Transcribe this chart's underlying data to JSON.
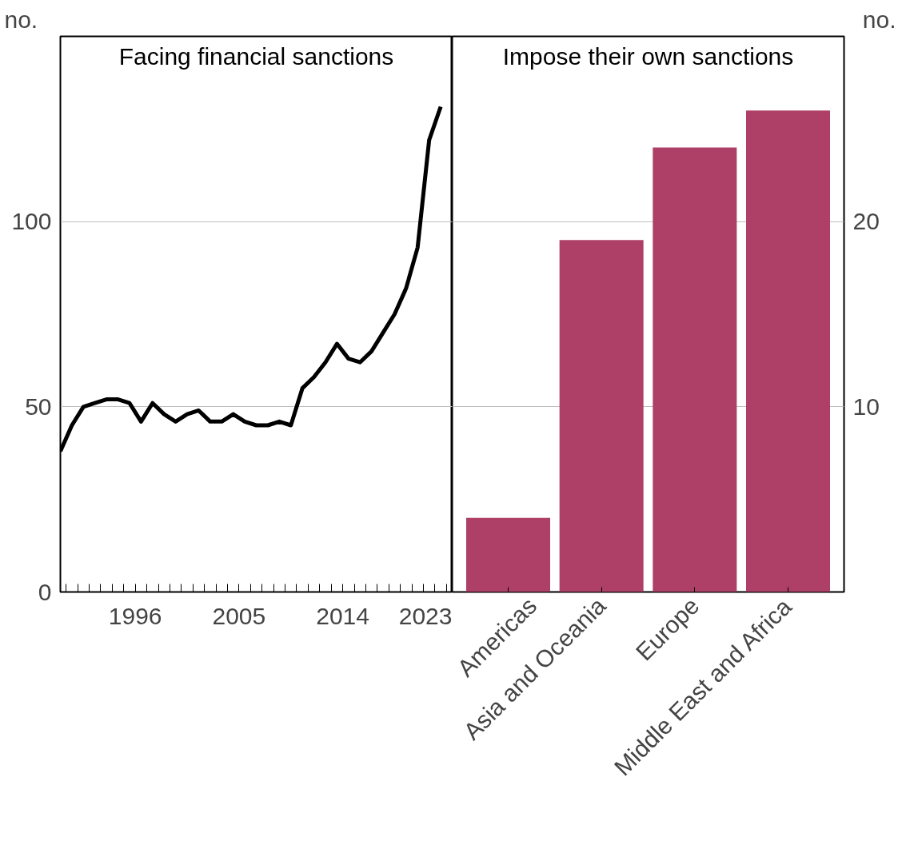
{
  "chart_data": [
    {
      "type": "line",
      "title": "Facing financial sanctions",
      "ylabel": "no.",
      "color": "#000000",
      "x": [
        1989.5,
        1990.5,
        1991.5,
        1992.5,
        1993.5,
        1994.5,
        1995.5,
        1996.5,
        1997.5,
        1998.5,
        1999.5,
        2000.5,
        2001.5,
        2002.5,
        2003.5,
        2004.5,
        2005.5,
        2006.5,
        2007.5,
        2008.5,
        2009.5,
        2010.5,
        2011.5,
        2012.5,
        2013.5,
        2014.5,
        2015.5,
        2016.5,
        2017.5,
        2018.5,
        2019.5,
        2020.5,
        2021.5,
        2022.5
      ],
      "values": [
        38,
        45,
        50,
        51,
        52,
        52,
        51,
        46,
        51,
        48,
        46,
        48,
        49,
        46,
        46,
        48,
        46,
        45,
        45,
        46,
        45,
        55,
        58,
        62,
        67,
        63,
        62,
        65,
        70,
        75,
        82,
        93,
        122,
        131
      ],
      "xlim": [
        1989.5,
        2023.5
      ],
      "xticks": [
        {
          "value": 1990,
          "label": null
        },
        {
          "value": 1991,
          "label": null
        },
        {
          "value": 1992,
          "label": null
        },
        {
          "value": 1993,
          "label": null
        },
        {
          "value": 1994,
          "label": null
        },
        {
          "value": 1995,
          "label": null
        },
        1996,
        {
          "value": 1997,
          "label": null
        },
        {
          "value": 1998,
          "label": null
        },
        {
          "value": 1999,
          "label": null
        },
        {
          "value": 2000,
          "label": null
        },
        {
          "value": 2001,
          "label": null
        },
        {
          "value": 2002,
          "label": null
        },
        {
          "value": 2003,
          "label": null
        },
        {
          "value": 2004,
          "label": null
        },
        2005,
        {
          "value": 2006,
          "label": null
        },
        {
          "value": 2007,
          "label": null
        },
        {
          "value": 2008,
          "label": null
        },
        {
          "value": 2009,
          "label": null
        },
        {
          "value": 2010,
          "label": null
        },
        {
          "value": 2011,
          "label": null
        },
        {
          "value": 2012,
          "label": null
        },
        {
          "value": 2013,
          "label": null
        },
        2014,
        {
          "value": 2015,
          "label": null
        },
        {
          "value": 2016,
          "label": null
        },
        {
          "value": 2017,
          "label": null
        },
        {
          "value": 2018,
          "label": null
        },
        {
          "value": 2019,
          "label": null
        },
        {
          "value": 2020,
          "label": null
        },
        {
          "value": 2021,
          "label": null
        },
        {
          "value": 2022,
          "label": null
        },
        2023
      ],
      "ylim": [
        0,
        150
      ],
      "yticks": [
        0,
        50,
        100
      ],
      "grid": "y",
      "line_style": "solid"
    },
    {
      "type": "bar",
      "title": "Impose their own sanctions",
      "ylabel": "no.",
      "color": "#ae4068",
      "categories": [
        "Americas",
        "Asia and Oceania",
        "Europe",
        "Middle East and Africa"
      ],
      "values": [
        4,
        19,
        24,
        26
      ],
      "ylim": [
        0,
        30
      ],
      "yticks": [
        10,
        20
      ],
      "grid": "y"
    }
  ]
}
